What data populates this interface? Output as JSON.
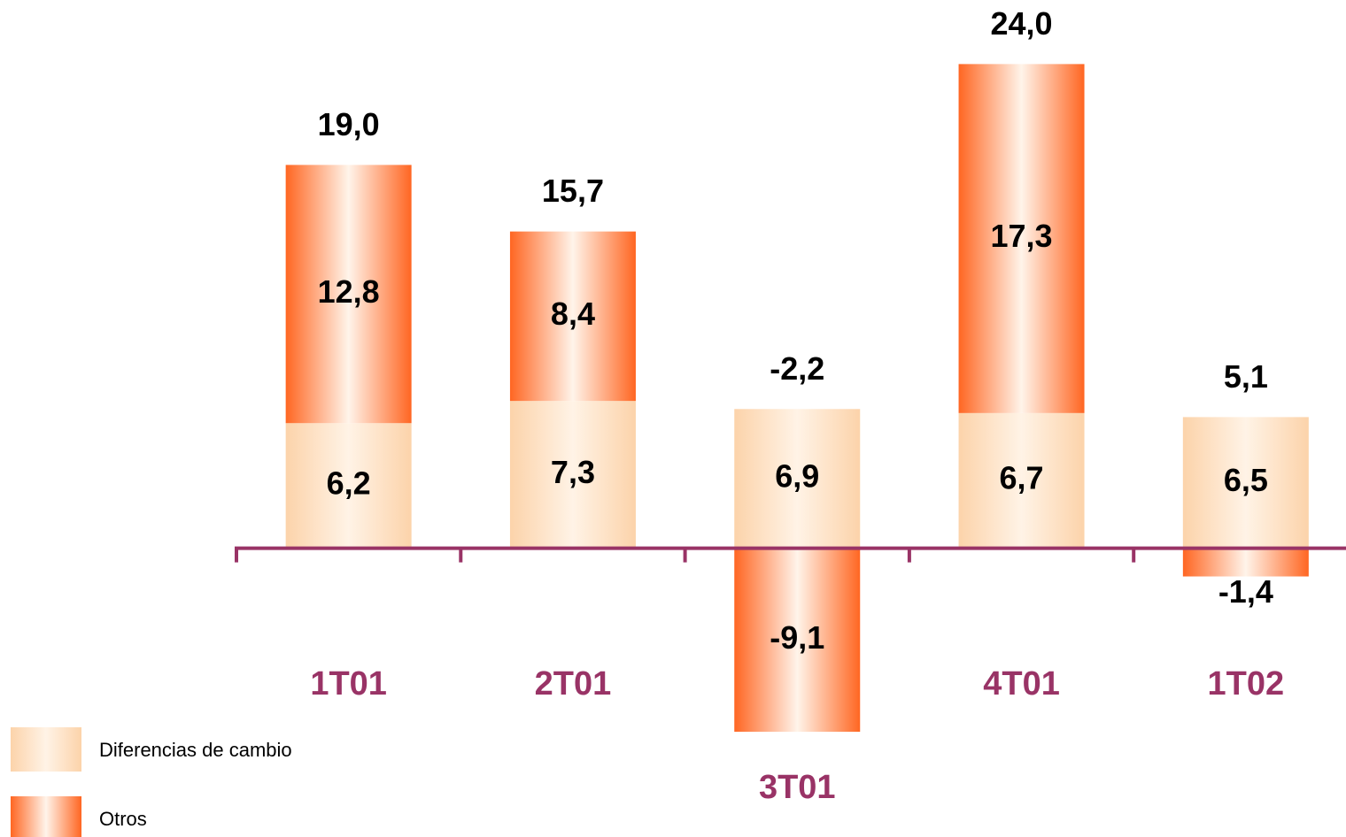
{
  "chart_data": {
    "type": "stacked_bar",
    "categories": [
      "1T01",
      "2T01",
      "3T01",
      "4T01",
      "1T02"
    ],
    "series": [
      {
        "name": "Diferencias de cambio",
        "color": "#fcd3aa",
        "values": [
          6.2,
          7.3,
          6.9,
          6.7,
          6.5
        ],
        "value_labels": [
          "6,2",
          "7,3",
          "6,9",
          "6,7",
          "6,5"
        ]
      },
      {
        "name": "Otros",
        "color": "#ff6622",
        "values": [
          12.8,
          8.4,
          -9.1,
          17.3,
          -1.4
        ],
        "value_labels": [
          "12,8",
          "8,4",
          "-9,1",
          "17,3",
          "-1,4"
        ]
      }
    ],
    "totals": [
      19.0,
      15.7,
      -2.2,
      24.0,
      5.1
    ],
    "total_labels": [
      "19,0",
      "15,7",
      "-2,2",
      "24,0",
      "5,1"
    ],
    "ylim": [
      -13,
      27
    ],
    "axis_color": "#993366"
  }
}
